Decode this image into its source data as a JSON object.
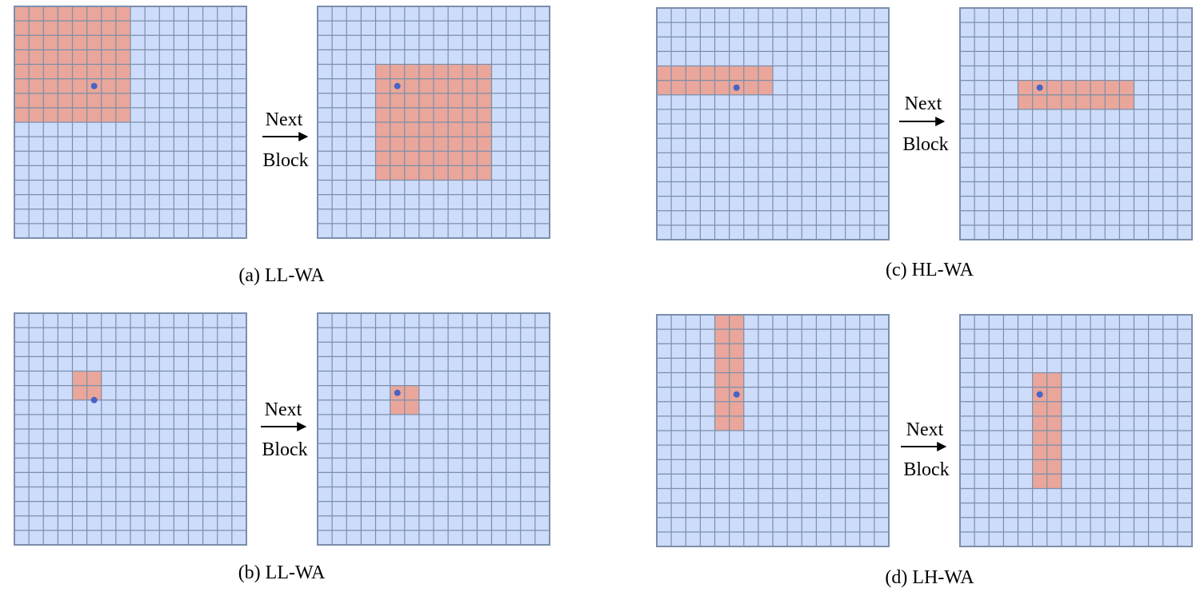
{
  "colors": {
    "cell_fill": "#cddcfa",
    "window_fill": "#eaa69a",
    "grid_line": "#7b8eab",
    "border": "#7b8eab",
    "dot": "#4764c6",
    "arrow": "#000000"
  },
  "grid": {
    "rows": 16,
    "cols": 16
  },
  "panels": [
    {
      "id": "a",
      "caption": "(a) LL-WA",
      "arrow_top": "Next",
      "arrow_bottom": "Block",
      "before": {
        "window": {
          "row": 0,
          "col": 0,
          "rows": 8,
          "cols": 8
        },
        "dot": {
          "row": 5.5,
          "col": 5.5
        }
      },
      "after": {
        "window": {
          "row": 4,
          "col": 4,
          "rows": 8,
          "cols": 8
        },
        "dot": {
          "row": 5.5,
          "col": 5.5
        }
      }
    },
    {
      "id": "b",
      "caption": "(b) LL-WA",
      "arrow_top": "Next",
      "arrow_bottom": "Block",
      "before": {
        "window": {
          "row": 4,
          "col": 4,
          "rows": 2,
          "cols": 2
        },
        "dot": {
          "row": 6,
          "col": 5.5
        }
      },
      "after": {
        "window": {
          "row": 5,
          "col": 5,
          "rows": 2,
          "cols": 2
        },
        "dot": {
          "row": 5.5,
          "col": 5.5
        }
      }
    },
    {
      "id": "c",
      "caption": "(c) HL-WA",
      "arrow_top": "Next",
      "arrow_bottom": "Block",
      "before": {
        "window": {
          "row": 4,
          "col": 0,
          "rows": 2,
          "cols": 8
        },
        "dot": {
          "row": 5.5,
          "col": 5.5
        }
      },
      "after": {
        "window": {
          "row": 5,
          "col": 4,
          "rows": 2,
          "cols": 8
        },
        "dot": {
          "row": 5.5,
          "col": 5.5
        }
      }
    },
    {
      "id": "d",
      "caption": "(d) LH-WA",
      "arrow_top": "Next",
      "arrow_bottom": "Block",
      "before": {
        "window": {
          "row": 0,
          "col": 4,
          "rows": 8,
          "cols": 2
        },
        "dot": {
          "row": 5.5,
          "col": 5.5
        }
      },
      "after": {
        "window": {
          "row": 4,
          "col": 5,
          "rows": 8,
          "cols": 2
        },
        "dot": {
          "row": 5.5,
          "col": 5.5
        }
      }
    }
  ]
}
